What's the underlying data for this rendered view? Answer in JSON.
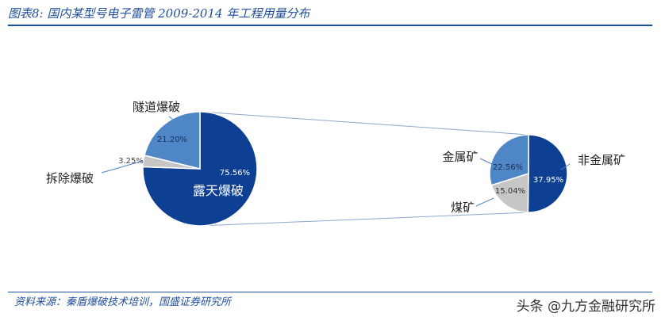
{
  "title": "图表8:  国内某型号电子雷管 2009-2014 年工程用量分布",
  "source": "资料来源：秦盾爆破技术培训，国盛证券研究所",
  "watermark": "头条 @九方金融研究所",
  "colors": {
    "dark_blue": "#0d3f93",
    "mid_blue": "#4f86c6",
    "gray": "#c6c6c6",
    "title_blue": "#1f4e9a",
    "connector": "#8ea6cc"
  },
  "chart_data": {
    "type": "pie",
    "pies": [
      {
        "slices": [
          {
            "label": "露天爆破",
            "value": 75.56,
            "value_label": "75.56%",
            "color": "#0d3f93"
          },
          {
            "label": "拆除爆破",
            "value": 3.25,
            "value_label": "3.25%",
            "color": "#c6c6c6"
          },
          {
            "label": "隧道爆破",
            "value": 21.2,
            "value_label": "21.20%",
            "color": "#4f86c6"
          }
        ]
      },
      {
        "slices": [
          {
            "label": "非金属矿",
            "value": 37.95,
            "value_label": "37.95%",
            "color": "#0d3f93"
          },
          {
            "label": "煤矿",
            "value": 15.04,
            "value_label": "15.04%",
            "color": "#c6c6c6"
          },
          {
            "label": "金属矿",
            "value": 22.56,
            "value_label": "22.56%",
            "color": "#4f86c6"
          }
        ]
      }
    ]
  }
}
